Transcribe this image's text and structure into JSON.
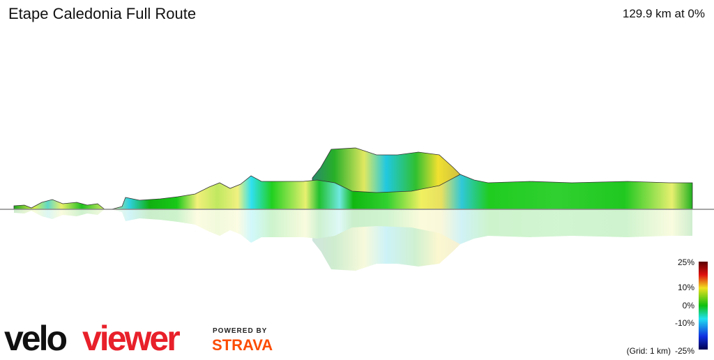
{
  "header": {
    "title": "Etape Caledonia Full Route",
    "summary": "129.9 km at 0%"
  },
  "legend": {
    "labels": [
      "25%",
      "10%",
      "0%",
      "-10%",
      "-25%"
    ],
    "grid_note": "(Grid: 1 km)"
  },
  "branding": {
    "logo_part1": "velo",
    "logo_part2": "viewer",
    "powered_by": "POWERED BY",
    "strava": "STRAVA"
  }
}
